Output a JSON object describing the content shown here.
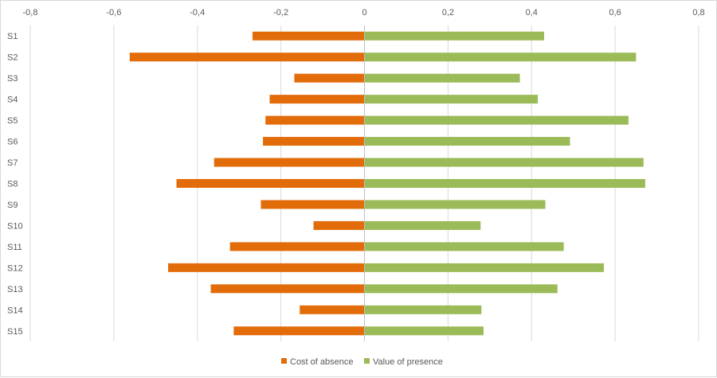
{
  "chart_data": {
    "type": "bar",
    "orientation": "horizontal",
    "title": "",
    "xlabel": "",
    "ylabel": "",
    "xlim": [
      -0.8,
      0.8
    ],
    "x_ticks": [
      -0.8,
      -0.6,
      -0.4,
      -0.2,
      0,
      0.2,
      0.4,
      0.6,
      0.8
    ],
    "x_tick_labels": [
      "-0,8",
      "-0,6",
      "-0,4",
      "-0,2",
      "0",
      "0,2",
      "0,4",
      "0,6",
      "0,8"
    ],
    "x_axis_position": "top",
    "grid": true,
    "legend_position": "bottom",
    "categories": [
      "S1",
      "S2",
      "S3",
      "S4",
      "S5",
      "S6",
      "S7",
      "S8",
      "S9",
      "S10",
      "S11",
      "S12",
      "S13",
      "S14",
      "S15"
    ],
    "series": [
      {
        "name": "Cost of absence",
        "color": "#e36c0a",
        "values": [
          -0.268,
          -0.562,
          -0.168,
          -0.227,
          -0.237,
          -0.243,
          -0.36,
          -0.45,
          -0.248,
          -0.122,
          -0.322,
          -0.47,
          -0.368,
          -0.155,
          -0.313
        ]
      },
      {
        "name": "Value of presence",
        "color": "#9bbb59",
        "values": [
          0.43,
          0.65,
          0.372,
          0.415,
          0.632,
          0.492,
          0.668,
          0.672,
          0.433,
          0.278,
          0.477,
          0.573,
          0.462,
          0.28,
          0.285
        ]
      }
    ]
  }
}
